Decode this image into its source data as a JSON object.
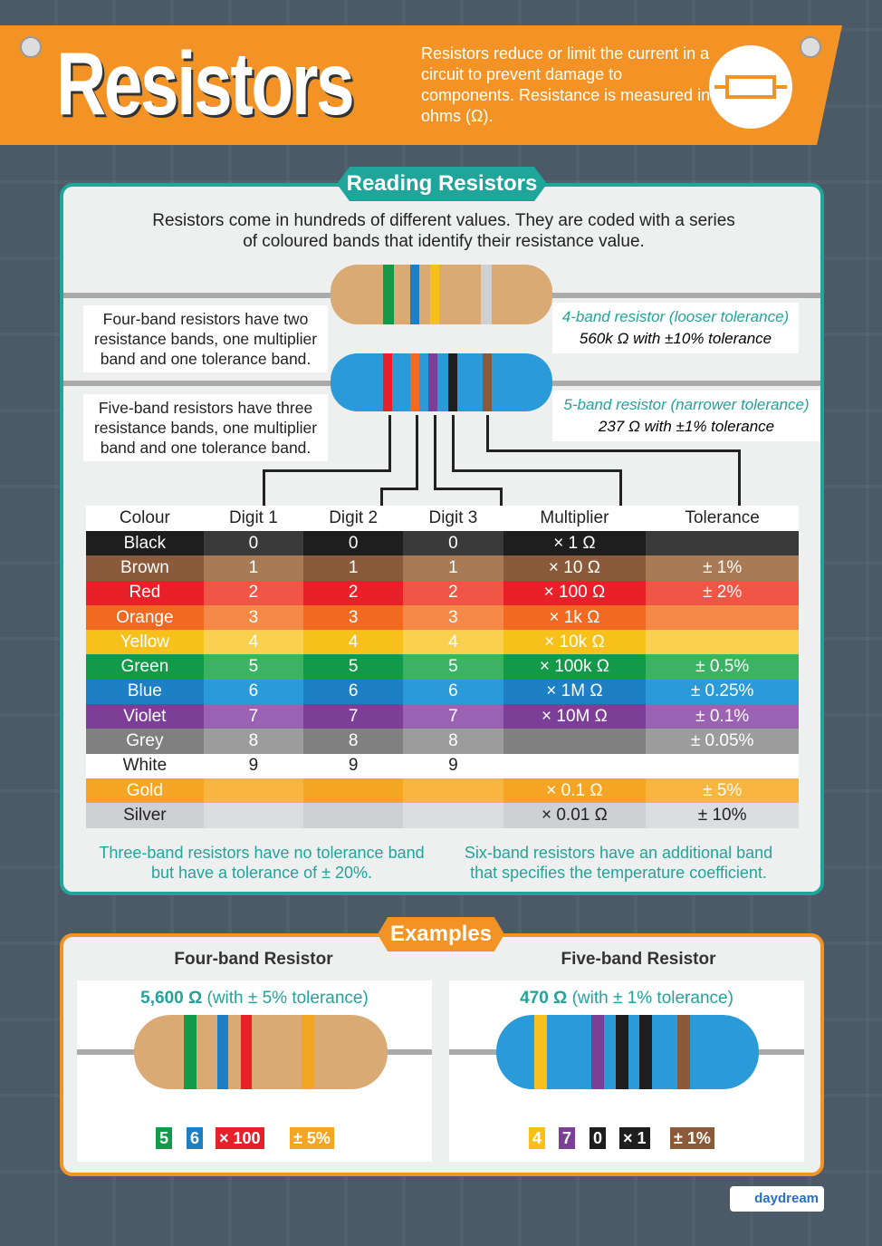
{
  "header": {
    "title": "Resistors",
    "intro": "Resistors reduce or limit the current in a circuit to prevent damage to components. Resistance is measured in ohms (Ω)."
  },
  "reading": {
    "title": "Reading Resistors",
    "lead": "Resistors come in hundreds of different values. They are coded with a series of coloured bands that identify their resistance value.",
    "four_band_note": "Four-band resistors have two resistance bands, one multiplier band and one tolerance band.",
    "five_band_note": "Five-band resistors have three resistance bands, one multiplier band and one tolerance band.",
    "four_band_label": "4-band resistor (looser tolerance)",
    "four_band_value": "560k Ω with ±10% tolerance",
    "five_band_label": "5-band resistor (narrower tolerance)",
    "five_band_value": "237 Ω with ±1% tolerance",
    "three_band_note": "Three-band resistors have no tolerance band but have a tolerance of ± 20%.",
    "six_band_note": "Six-band resistors have an additional band that specifies the temperature coefficient."
  },
  "table": {
    "headers": [
      "Colour",
      "Digit 1",
      "Digit 2",
      "Digit 3",
      "Multiplier",
      "Tolerance"
    ],
    "rows": [
      {
        "c": [
          "Black",
          "0",
          "0",
          "0",
          "× 1 Ω",
          ""
        ],
        "bg": "#1e1e1e",
        "lt": "#3a3a3a",
        "fg": "#fff"
      },
      {
        "c": [
          "Brown",
          "1",
          "1",
          "1",
          "× 10 Ω",
          "± 1%"
        ],
        "bg": "#8a5a3a",
        "lt": "#a87a55",
        "fg": "#fff"
      },
      {
        "c": [
          "Red",
          "2",
          "2",
          "2",
          "× 100 Ω",
          "± 2%"
        ],
        "bg": "#e8202a",
        "lt": "#f05545",
        "fg": "#fff"
      },
      {
        "c": [
          "Orange",
          "3",
          "3",
          "3",
          "× 1k Ω",
          ""
        ],
        "bg": "#f26a22",
        "lt": "#f58a48",
        "fg": "#fff"
      },
      {
        "c": [
          "Yellow",
          "4",
          "4",
          "4",
          "× 10k Ω",
          ""
        ],
        "bg": "#f8c01a",
        "lt": "#fad050",
        "fg": "#fff"
      },
      {
        "c": [
          "Green",
          "5",
          "5",
          "5",
          "× 100k Ω",
          "± 0.5%"
        ],
        "bg": "#139a48",
        "lt": "#3cb364",
        "fg": "#fff"
      },
      {
        "c": [
          "Blue",
          "6",
          "6",
          "6",
          "× 1M Ω",
          "± 0.25%"
        ],
        "bg": "#1d7fc4",
        "lt": "#2b9ad8",
        "fg": "#fff"
      },
      {
        "c": [
          "Violet",
          "7",
          "7",
          "7",
          "× 10M Ω",
          "± 0.1%"
        ],
        "bg": "#7b3f98",
        "lt": "#9a62b2",
        "fg": "#fff"
      },
      {
        "c": [
          "Grey",
          "8",
          "8",
          "8",
          "",
          "± 0.05%"
        ],
        "bg": "#808080",
        "lt": "#9c9c9c",
        "fg": "#fff"
      },
      {
        "c": [
          "White",
          "9",
          "9",
          "9",
          "",
          ""
        ],
        "bg": "#ffffff",
        "lt": "#ffffff",
        "fg": "#222"
      },
      {
        "c": [
          "Gold",
          "",
          "",
          "",
          "× 0.1 Ω",
          "± 5%"
        ],
        "bg": "#f4a524",
        "lt": "#f8b540",
        "fg": "#fff"
      },
      {
        "c": [
          "Silver",
          "",
          "",
          "",
          "× 0.01 Ω",
          "± 10%"
        ],
        "bg": "#cfd0d2",
        "lt": "#dcdddf",
        "fg": "#222"
      }
    ]
  },
  "examples": {
    "title": "Examples",
    "four": {
      "heading": "Four-band Resistor",
      "value": "5,600 Ω",
      "suffix": " (with ± 5% tolerance)",
      "tags": [
        "5",
        "6",
        "× 100",
        "± 5%"
      ]
    },
    "five": {
      "heading": "Five-band Resistor",
      "value": "470 Ω",
      "suffix": " (with ± 1% tolerance)",
      "tags": [
        "4",
        "7",
        "0",
        "× 1",
        "± 1%"
      ]
    }
  },
  "brand": "daydream",
  "colors": {
    "orange": "#f39325",
    "teal": "#1fa59a",
    "background": "#4b5a66"
  }
}
